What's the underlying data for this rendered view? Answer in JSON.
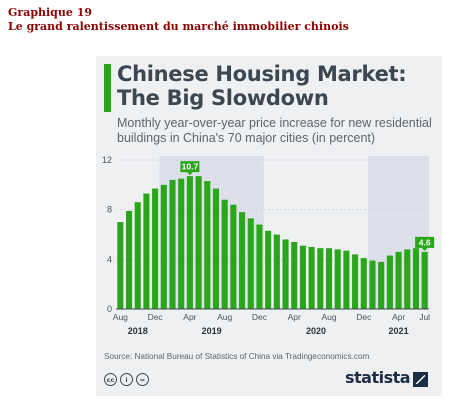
{
  "document": {
    "heading_line1": "Graphique 19",
    "heading_line2": "Le grand ralentissement du marché immobilier chinois"
  },
  "card": {
    "title_line1": "Chinese Housing Market:",
    "title_line2": "The Big Slowdown",
    "subtitle": "Monthly year-over-year price increase for new residential buildings in China's 70 major cities (in percent)",
    "source": "Source: National Bureau of Statistics of China via Tradingeconomics.com",
    "brand": "statista",
    "license_icons": [
      "cc-icon",
      "by-icon",
      "nd-icon"
    ],
    "license_labels": [
      "cc",
      "i",
      "="
    ]
  },
  "chart_data": {
    "type": "bar",
    "ylim": [
      0,
      12
    ],
    "yticks": [
      0,
      4,
      8,
      12
    ],
    "grid": true,
    "bar_color": "#2aa61a",
    "shade_color": "#dde0ea",
    "months": [
      "Aug",
      "Sep",
      "Oct",
      "Nov",
      "Dec",
      "Jan",
      "Feb",
      "Mar",
      "Apr",
      "May",
      "Jun",
      "Jul",
      "Aug",
      "Sep",
      "Oct",
      "Nov",
      "Dec",
      "Jan",
      "Feb",
      "Mar",
      "Apr",
      "May",
      "Jun",
      "Jul",
      "Aug",
      "Sep",
      "Oct",
      "Nov",
      "Dec",
      "Jan",
      "Feb",
      "Mar",
      "Apr",
      "May",
      "Jun",
      "Jul"
    ],
    "values": [
      7.0,
      7.9,
      8.6,
      9.3,
      9.7,
      10.0,
      10.4,
      10.5,
      10.7,
      10.7,
      10.3,
      9.7,
      8.8,
      8.4,
      7.8,
      7.3,
      6.8,
      6.3,
      6.0,
      5.6,
      5.4,
      5.1,
      5.0,
      4.9,
      4.9,
      4.8,
      4.7,
      4.4,
      4.1,
      3.9,
      3.8,
      4.3,
      4.6,
      4.8,
      4.9,
      4.6
    ],
    "month_tick_labels": [
      {
        "index": 0,
        "label": "Aug"
      },
      {
        "index": 4,
        "label": "Dec"
      },
      {
        "index": 8,
        "label": "Apr"
      },
      {
        "index": 12,
        "label": "Aug"
      },
      {
        "index": 16,
        "label": "Dec"
      },
      {
        "index": 20,
        "label": "Apr"
      },
      {
        "index": 24,
        "label": "Aug"
      },
      {
        "index": 28,
        "label": "Dec"
      },
      {
        "index": 32,
        "label": "Apr"
      },
      {
        "index": 35,
        "label": "Jul"
      }
    ],
    "year_labels": [
      {
        "label": "2018",
        "start": 0,
        "end": 4
      },
      {
        "label": "2019",
        "start": 5,
        "end": 16
      },
      {
        "label": "2020",
        "start": 17,
        "end": 28
      },
      {
        "label": "2021",
        "start": 29,
        "end": 35
      }
    ],
    "annotations": [
      {
        "index": 8,
        "label": "10.7"
      },
      {
        "index": 35,
        "label": "4.6"
      }
    ]
  }
}
